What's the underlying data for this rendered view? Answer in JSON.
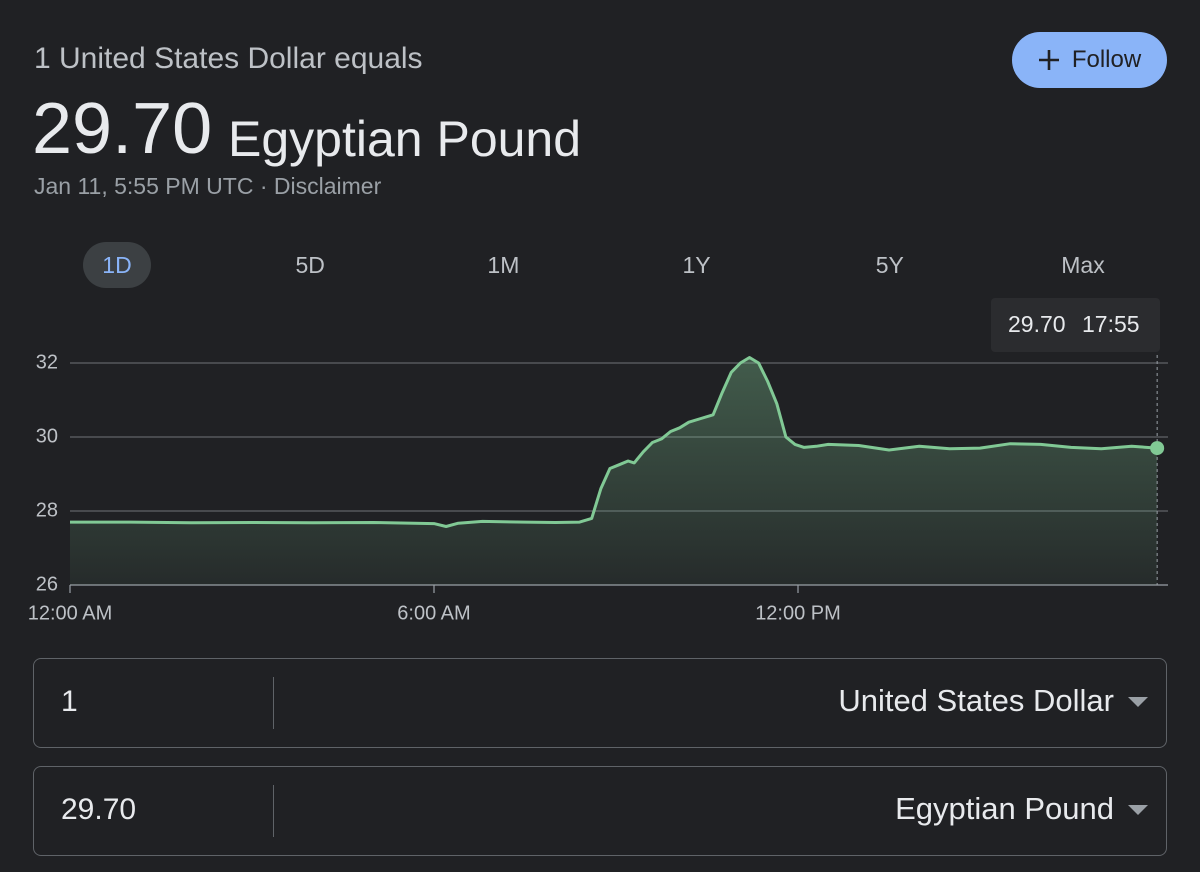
{
  "header": {
    "subtitle": "1 United States Dollar equals",
    "rate": "29.70",
    "currency": "Egyptian Pound",
    "timestamp": "Jan 11, 5:55 PM UTC",
    "separator": "·",
    "disclaimer": "Disclaimer"
  },
  "follow_button": "Follow",
  "range_tabs": [
    "1D",
    "5D",
    "1M",
    "1Y",
    "5Y",
    "Max"
  ],
  "tooltip": {
    "value": "29.70",
    "time": "17:55"
  },
  "chart_data": {
    "type": "line",
    "x": [
      0,
      1,
      2,
      3,
      4,
      5,
      6,
      6.2,
      6.4,
      6.8,
      7.5,
      8,
      8.4,
      8.6,
      8.75,
      8.9,
      9.05,
      9.2,
      9.3,
      9.45,
      9.6,
      9.75,
      9.9,
      10.05,
      10.2,
      10.4,
      10.6,
      10.75,
      10.9,
      11.05,
      11.2,
      11.35,
      11.5,
      11.65,
      11.8,
      11.95,
      12.1,
      12.3,
      12.5,
      13,
      13.5,
      14,
      14.5,
      15,
      15.5,
      16,
      16.5,
      17,
      17.5,
      17.92
    ],
    "values": [
      27.7,
      27.7,
      27.68,
      27.69,
      27.68,
      27.69,
      27.66,
      27.58,
      27.67,
      27.72,
      27.7,
      27.69,
      27.7,
      27.8,
      28.6,
      29.15,
      29.25,
      29.35,
      29.3,
      29.6,
      29.85,
      29.95,
      30.15,
      30.25,
      30.4,
      30.5,
      30.6,
      31.2,
      31.75,
      32.0,
      32.15,
      32.0,
      31.5,
      30.9,
      30.0,
      29.8,
      29.72,
      29.75,
      29.8,
      29.77,
      29.65,
      29.75,
      29.68,
      29.7,
      29.82,
      29.8,
      29.72,
      29.68,
      29.75,
      29.7
    ],
    "color": "#81c995",
    "xlim": [
      0,
      18
    ],
    "xticks": [
      {
        "value": 0,
        "label": "12:00 AM"
      },
      {
        "value": 6,
        "label": "6:00 AM"
      },
      {
        "value": 12,
        "label": "12:00 PM"
      }
    ],
    "ylim": [
      26,
      32
    ],
    "yticks": [
      26,
      28,
      30,
      32
    ],
    "grid": true
  },
  "converter": [
    {
      "amount": "1",
      "currency": "United States Dollar"
    },
    {
      "amount": "29.70",
      "currency": "Egyptian Pound"
    }
  ]
}
